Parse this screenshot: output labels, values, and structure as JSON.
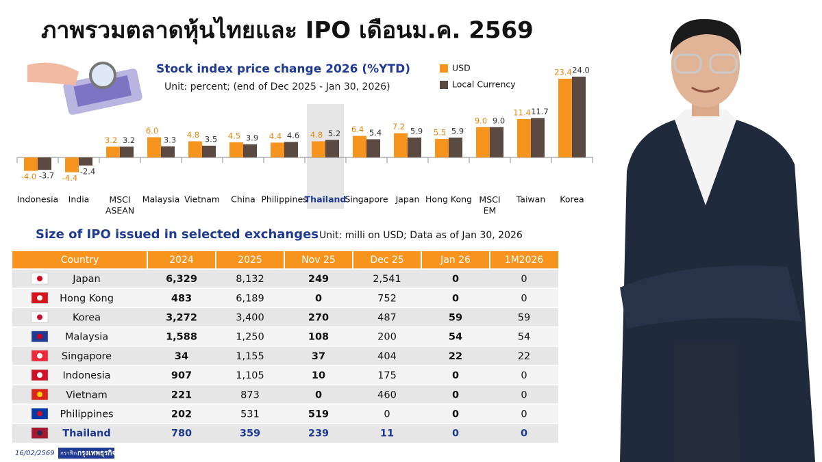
{
  "title": "ภาพรวมตลาดหุ้นไทยและ IPO เดือนม.ค. 2569",
  "chart_data": {
    "type": "bar",
    "title": "Stock index price change 2026 (%YTD)",
    "subtitle": "Unit: percent; (end of Dec 2025 - Jan 30, 2026)",
    "categories": [
      "Indonesia",
      "India",
      "MSCI\nASEAN",
      "Malaysia",
      "Vietnam",
      "China",
      "Philippines",
      "Thailand",
      "Singapore",
      "Japan",
      "Hong Kong",
      "MSCI\nEM",
      "Taiwan",
      "Korea"
    ],
    "highlight_index": 7,
    "series": [
      {
        "name": "USD",
        "color": "#f7941d",
        "values": [
          -4.0,
          -4.4,
          3.2,
          6.0,
          4.8,
          4.5,
          4.4,
          4.8,
          6.4,
          7.2,
          5.5,
          9.0,
          11.4,
          23.4
        ],
        "value_labels": [
          "-4.0",
          "-4.4",
          "3.2",
          "6.0",
          "4.8",
          "4.5",
          "4.4",
          "4.8",
          "6.4",
          "7.2",
          "5.5",
          "9.0",
          "11.4",
          "23.4"
        ]
      },
      {
        "name": "Local Currency",
        "color": "#5b4a42",
        "values": [
          -3.7,
          -2.4,
          3.2,
          3.3,
          3.5,
          3.9,
          4.6,
          5.2,
          5.4,
          5.9,
          5.9,
          9.0,
          11.7,
          24.0
        ],
        "value_labels": [
          "-3.7",
          "-2.4",
          "3.2",
          "3.3",
          "3.5",
          "3.9",
          "4.6",
          "5.2",
          "5.4",
          "5.9",
          "5.9",
          "9.0",
          "11.7",
          "24.0"
        ]
      }
    ]
  },
  "table": {
    "title": "Size of IPO issued in selected exchanges",
    "note": "Unit: milli on USD; Data  as of Jan 30, 2026",
    "highlight_row": 8,
    "header": [
      "Country",
      "2024",
      "2025",
      "Nov 25",
      "Dec 25",
      "Jan 26",
      "1M2026"
    ],
    "rows": [
      [
        "Japan",
        "6,329",
        "8,132",
        "249",
        "2,541",
        "0",
        "0"
      ],
      [
        "Hong Kong",
        "483",
        "6,189",
        "0",
        "752",
        "0",
        "0"
      ],
      [
        "Korea",
        "3,272",
        "3,400",
        "270",
        "487",
        "59",
        "59"
      ],
      [
        "Malaysia",
        "1,588",
        "1,250",
        "108",
        "200",
        "54",
        "54"
      ],
      [
        "Singapore",
        "34",
        "1,155",
        "37",
        "404",
        "22",
        "22"
      ],
      [
        "Indonesia",
        "907",
        "1,105",
        "10",
        "175",
        "0",
        "0"
      ],
      [
        "Vietnam",
        "221",
        "873",
        "0",
        "460",
        "0",
        "0"
      ],
      [
        "Philippines",
        "202",
        "531",
        "519",
        "0",
        "0",
        "0"
      ],
      [
        "Thailand",
        "780",
        "359",
        "239",
        "11",
        "0",
        "0"
      ]
    ]
  },
  "footer": {
    "date": "16/02/2569",
    "credit": "กราฟิก",
    "brand": "กรุงเทพธุรกิจ"
  }
}
